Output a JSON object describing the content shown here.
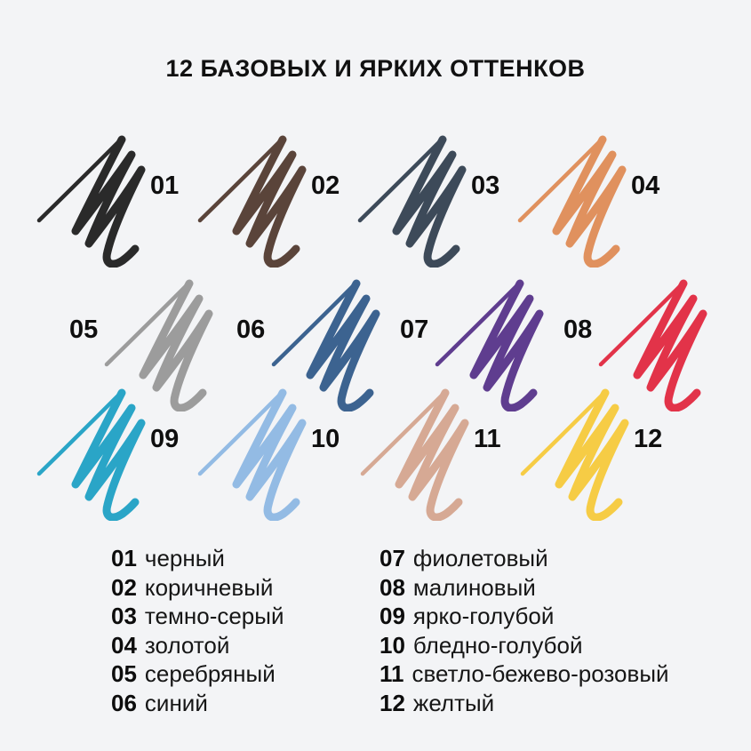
{
  "page": {
    "background": "#f3f4f6",
    "title": "12 БАЗОВЫХ И ЯРКИХ ОТТЕНКОВ",
    "text_color": "#111111"
  },
  "swatches": [
    {
      "num": "01",
      "name": "черный",
      "color": "#2a2a2a"
    },
    {
      "num": "02",
      "name": "коричневый",
      "color": "#5a443a"
    },
    {
      "num": "03",
      "name": "темно-серый",
      "color": "#3d4a59"
    },
    {
      "num": "04",
      "name": "золотой",
      "color": "#e0915e"
    },
    {
      "num": "05",
      "name": "серебряный",
      "color": "#9c9c9c"
    },
    {
      "num": "06",
      "name": "синий",
      "color": "#3c6390"
    },
    {
      "num": "07",
      "name": "фиолетовый",
      "color": "#5f3d8f"
    },
    {
      "num": "08",
      "name": "малиновый",
      "color": "#e23349"
    },
    {
      "num": "09",
      "name": "ярко-голубой",
      "color": "#2aa5c7"
    },
    {
      "num": "10",
      "name": "бледно-голубой",
      "color": "#93bbe4"
    },
    {
      "num": "11",
      "name": "светло-бежево-розовый",
      "color": "#d6a994"
    },
    {
      "num": "12",
      "name": "желтый",
      "color": "#f6cc45"
    }
  ]
}
